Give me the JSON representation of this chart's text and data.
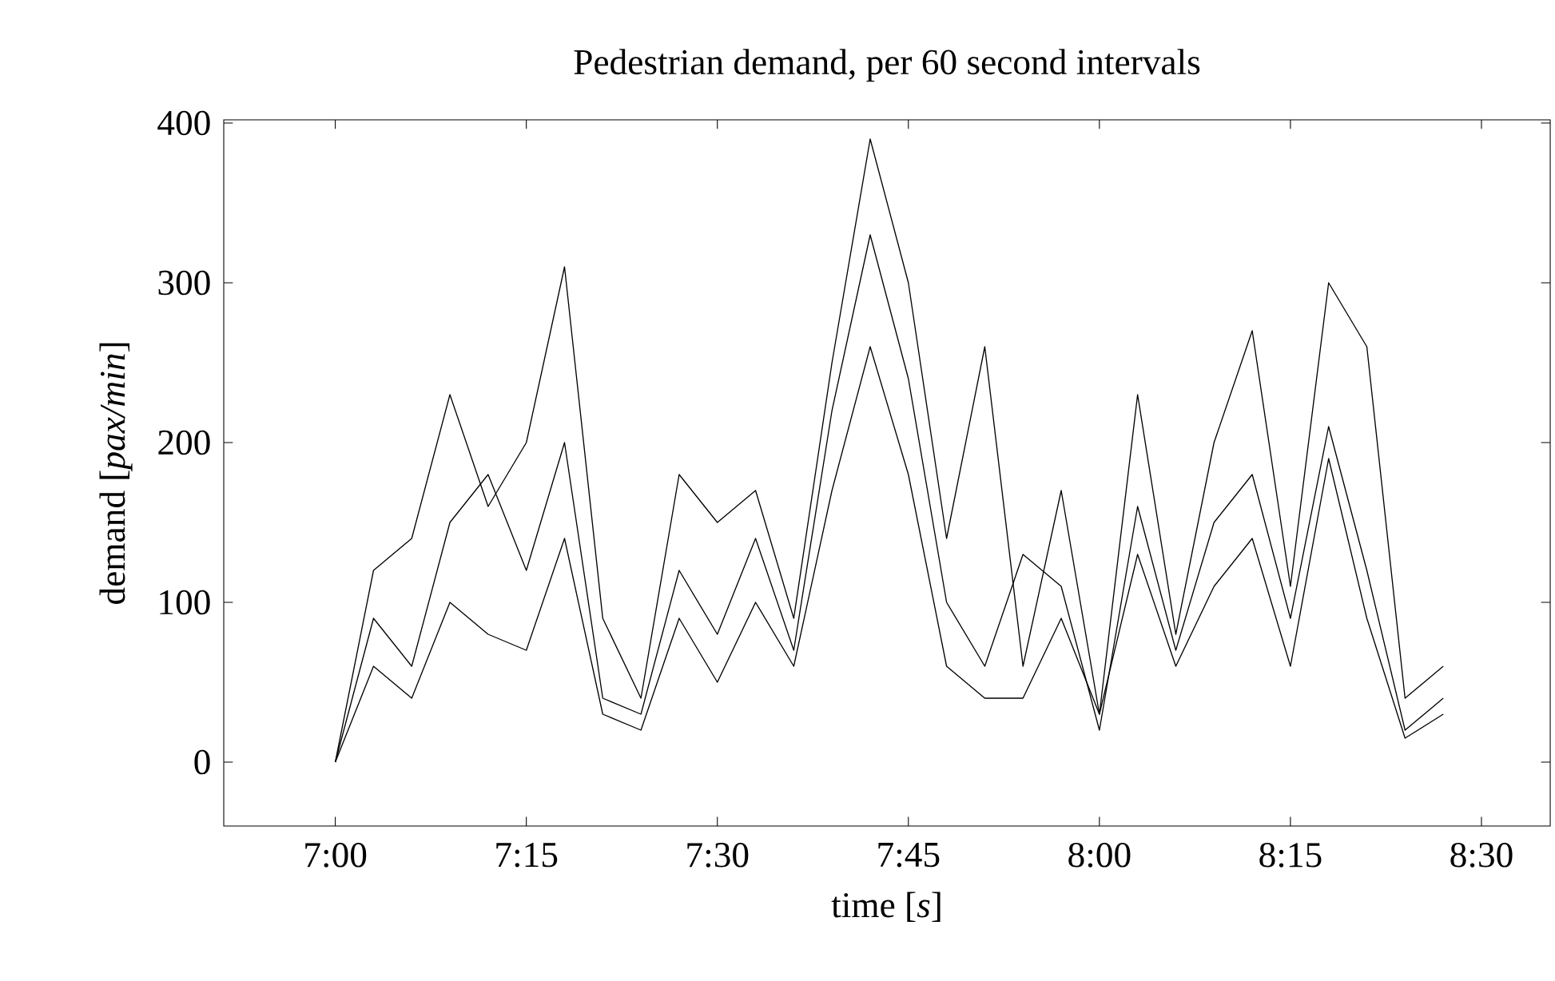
{
  "chart_data": {
    "type": "line",
    "title": "Pedestrian demand, per 60 second intervals",
    "xlabel": "time [*s*]",
    "ylabel": "demand [*pax/min*]",
    "x": [
      7.0,
      7.05,
      7.1,
      7.15,
      7.2,
      7.25,
      7.3,
      7.35,
      7.4,
      7.45,
      7.5,
      7.55,
      7.6,
      7.65,
      7.7,
      7.75,
      7.8,
      7.85,
      7.9,
      7.95,
      8.0,
      8.05,
      8.1,
      8.15,
      8.2,
      8.25,
      8.3,
      8.35,
      8.4,
      8.45
    ],
    "series": [
      {
        "color": "#000000",
        "values": [
          0,
          120,
          140,
          230,
          160,
          200,
          310,
          90,
          40,
          180,
          150,
          170,
          90,
          250,
          390,
          300,
          140,
          260,
          60,
          170,
          30,
          230,
          80,
          200,
          270,
          110,
          300,
          260,
          40,
          60
        ]
      },
      {
        "color": "#000000",
        "values": [
          0,
          90,
          60,
          150,
          180,
          120,
          200,
          40,
          30,
          120,
          80,
          140,
          70,
          220,
          330,
          240,
          100,
          60,
          130,
          110,
          20,
          160,
          70,
          150,
          180,
          90,
          210,
          120,
          20,
          40
        ]
      },
      {
        "color": "#000000",
        "values": [
          0,
          60,
          40,
          100,
          80,
          70,
          140,
          30,
          20,
          90,
          50,
          100,
          60,
          170,
          260,
          180,
          60,
          40,
          40,
          90,
          30,
          130,
          60,
          110,
          140,
          60,
          190,
          90,
          15,
          30
        ]
      }
    ],
    "xlim": [
      6.854,
      8.59
    ],
    "ylim": [
      -40,
      402
    ],
    "xticks": [
      {
        "value": 7.0,
        "label": "7:00"
      },
      {
        "value": 7.25,
        "label": "7:15"
      },
      {
        "value": 7.5,
        "label": "7:30"
      },
      {
        "value": 7.75,
        "label": "7:45"
      },
      {
        "value": 8.0,
        "label": "8:00"
      },
      {
        "value": 8.25,
        "label": "8:15"
      },
      {
        "value": 8.5,
        "label": "8:30"
      }
    ],
    "yticks": [
      0,
      100,
      200,
      300,
      400
    ],
    "grid": false,
    "marker": "none",
    "line_style": "solid"
  }
}
